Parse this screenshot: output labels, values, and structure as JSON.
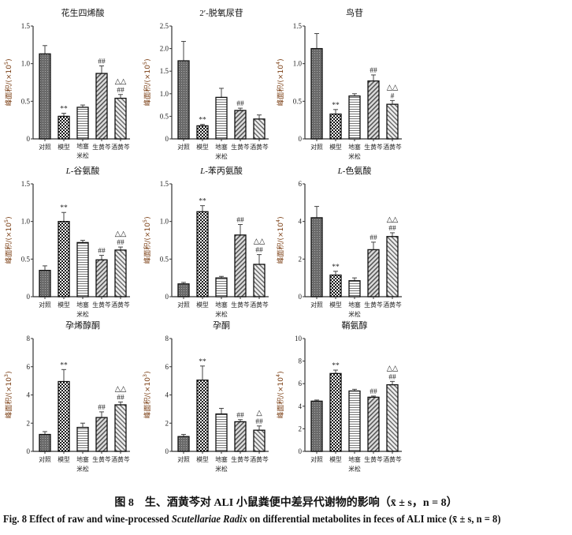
{
  "categories": [
    "对照",
    "模型",
    "地塞米松",
    "生黄芩",
    "酒黄芩"
  ],
  "category_lines": [
    [
      "对照"
    ],
    [
      "模型"
    ],
    [
      "地塞",
      "米松"
    ],
    [
      "生黄芩"
    ],
    [
      "酒黄芩"
    ]
  ],
  "ylabel_prefix": "峰面积/(×10",
  "ylabel_suffix": ")",
  "colors": {
    "axis": "#333333",
    "ylabel": "#7a3d12",
    "bar_fill": "#777777",
    "stroke": "#111111"
  },
  "chart_data": [
    {
      "type": "bar",
      "title_italic": "",
      "title": "花生四烯酸",
      "exponent": "5",
      "ylim": [
        0,
        1.5
      ],
      "yticks": [
        "0",
        "0.5",
        "1.0",
        "1.5"
      ],
      "ytick_values": [
        0,
        0.5,
        1.0,
        1.5
      ],
      "values": [
        1.13,
        0.3,
        0.42,
        0.87,
        0.54
      ],
      "errors": [
        0.11,
        0.04,
        0.03,
        0.1,
        0.05
      ],
      "annotations": [
        [],
        [
          "**"
        ],
        [],
        [
          "##"
        ],
        [
          "△△",
          "##"
        ]
      ]
    },
    {
      "type": "bar",
      "title_italic": "",
      "title": "2′-脱氧尿苷",
      "exponent": "5",
      "ylim": [
        0,
        2.5
      ],
      "yticks": [
        "0",
        "0.5",
        "1.0",
        "1.5",
        "2.0",
        "2.5"
      ],
      "ytick_values": [
        0,
        0.5,
        1.0,
        1.5,
        2.0,
        2.5
      ],
      "values": [
        1.73,
        0.29,
        0.92,
        0.63,
        0.44
      ],
      "errors": [
        0.43,
        0.03,
        0.2,
        0.05,
        0.09
      ],
      "annotations": [
        [],
        [
          "**"
        ],
        [],
        [
          "##"
        ],
        []
      ]
    },
    {
      "type": "bar",
      "title_italic": "",
      "title": "鸟苷",
      "exponent": "4",
      "ylim": [
        0,
        1.5
      ],
      "yticks": [
        "0",
        "0.5",
        "1.0",
        "1.5"
      ],
      "ytick_values": [
        0,
        0.5,
        1.0,
        1.5
      ],
      "values": [
        1.2,
        0.33,
        0.57,
        0.77,
        0.46
      ],
      "errors": [
        0.2,
        0.06,
        0.03,
        0.08,
        0.05
      ],
      "annotations": [
        [],
        [
          "**"
        ],
        [],
        [
          "##"
        ],
        [
          "△△",
          "#"
        ]
      ]
    },
    {
      "type": "bar",
      "title_italic": "L",
      "title": "-谷氨酸",
      "exponent": "5",
      "ylim": [
        0,
        1.5
      ],
      "yticks": [
        "0",
        "0.5",
        "1.0",
        "1.5"
      ],
      "ytick_values": [
        0,
        0.5,
        1.0,
        1.5
      ],
      "values": [
        0.35,
        1.0,
        0.72,
        0.49,
        0.62
      ],
      "errors": [
        0.06,
        0.12,
        0.03,
        0.06,
        0.04
      ],
      "annotations": [
        [],
        [
          "**"
        ],
        [],
        [
          "##"
        ],
        [
          "△△",
          "##"
        ]
      ]
    },
    {
      "type": "bar",
      "title_italic": "L",
      "title": "-苯丙氨酸",
      "exponent": "5",
      "ylim": [
        0,
        1.5
      ],
      "yticks": [
        "0",
        "0.5",
        "1.0",
        "1.5"
      ],
      "ytick_values": [
        0,
        0.5,
        1.0,
        1.5
      ],
      "values": [
        0.17,
        1.13,
        0.25,
        0.82,
        0.43
      ],
      "errors": [
        0.02,
        0.08,
        0.02,
        0.14,
        0.13
      ],
      "annotations": [
        [],
        [
          "**"
        ],
        [],
        [
          "##"
        ],
        [
          "△△",
          "##"
        ]
      ]
    },
    {
      "type": "bar",
      "title_italic": "L",
      "title": "-色氨酸",
      "exponent": "4",
      "ylim": [
        0,
        6
      ],
      "yticks": [
        "0",
        "2",
        "4",
        "6"
      ],
      "ytick_values": [
        0,
        2,
        4,
        6
      ],
      "values": [
        4.2,
        1.15,
        0.85,
        2.5,
        3.2
      ],
      "errors": [
        0.6,
        0.2,
        0.15,
        0.4,
        0.2
      ],
      "annotations": [
        [],
        [
          "**"
        ],
        [],
        [
          "##"
        ],
        [
          "△△",
          "##"
        ]
      ]
    },
    {
      "type": "bar",
      "title_italic": "",
      "title": "孕烯醇酮",
      "exponent": "3",
      "ylim": [
        0,
        8
      ],
      "yticks": [
        "0",
        "2",
        "4",
        "6",
        "8"
      ],
      "ytick_values": [
        0,
        2,
        4,
        6,
        8
      ],
      "values": [
        1.2,
        4.95,
        1.7,
        2.4,
        3.3
      ],
      "errors": [
        0.2,
        0.85,
        0.3,
        0.4,
        0.2
      ],
      "annotations": [
        [],
        [
          "**"
        ],
        [],
        [
          "##"
        ],
        [
          "△△",
          "##"
        ]
      ]
    },
    {
      "type": "bar",
      "title_italic": "",
      "title": "孕酮",
      "exponent": "3",
      "ylim": [
        0,
        8
      ],
      "yticks": [
        "0",
        "2",
        "4",
        "6",
        "8"
      ],
      "ytick_values": [
        0,
        2,
        4,
        6,
        8
      ],
      "values": [
        1.05,
        5.05,
        2.65,
        2.1,
        1.5
      ],
      "errors": [
        0.15,
        1.0,
        0.4,
        0.15,
        0.3
      ],
      "annotations": [
        [],
        [
          "**"
        ],
        [],
        [
          "##"
        ],
        [
          "△",
          "##"
        ]
      ]
    },
    {
      "type": "bar",
      "title_italic": "",
      "title": "鞘氨醇",
      "exponent": "4",
      "ylim": [
        0,
        10
      ],
      "yticks": [
        "0",
        "2",
        "4",
        "6",
        "8",
        "10"
      ],
      "ytick_values": [
        0,
        2,
        4,
        6,
        8,
        10
      ],
      "values": [
        4.45,
        6.9,
        5.35,
        4.8,
        5.9
      ],
      "errors": [
        0.1,
        0.3,
        0.15,
        0.1,
        0.3
      ],
      "annotations": [
        [],
        [
          "**"
        ],
        [],
        [
          "##"
        ],
        [
          "△△",
          "##"
        ]
      ]
    }
  ],
  "caption": {
    "cn": "图 8　生、酒黄芩对 ALI 小鼠粪便中差异代谢物的影响（x̄ ± s，n = 8）",
    "en_before": "Fig. 8   Effect of raw and wine-processed ",
    "en_italic": "Scutellariae Radix",
    "en_after": " on differential metabolites in feces of ALI mice (x̄ ± s, n = 8)"
  }
}
